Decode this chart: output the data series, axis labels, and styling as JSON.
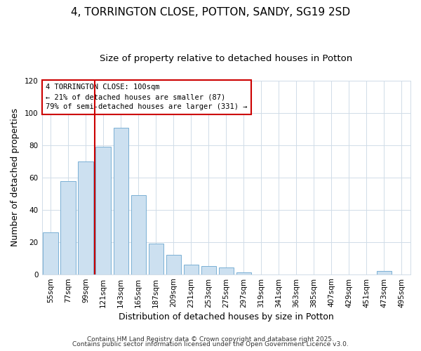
{
  "title": "4, TORRINGTON CLOSE, POTTON, SANDY, SG19 2SD",
  "subtitle": "Size of property relative to detached houses in Potton",
  "xlabel": "Distribution of detached houses by size in Potton",
  "ylabel": "Number of detached properties",
  "bin_labels": [
    "55sqm",
    "77sqm",
    "99sqm",
    "121sqm",
    "143sqm",
    "165sqm",
    "187sqm",
    "209sqm",
    "231sqm",
    "253sqm",
    "275sqm",
    "297sqm",
    "319sqm",
    "341sqm",
    "363sqm",
    "385sqm",
    "407sqm",
    "429sqm",
    "451sqm",
    "473sqm",
    "495sqm"
  ],
  "bar_values": [
    26,
    58,
    70,
    79,
    91,
    49,
    19,
    12,
    6,
    5,
    4,
    1,
    0,
    0,
    0,
    0,
    0,
    0,
    0,
    2,
    0
  ],
  "bar_color": "#cce0f0",
  "bar_edge_color": "#7ab0d4",
  "vline_color": "#cc0000",
  "ylim": [
    0,
    120
  ],
  "yticks": [
    0,
    20,
    40,
    60,
    80,
    100,
    120
  ],
  "annotation_title": "4 TORRINGTON CLOSE: 100sqm",
  "annotation_line1": "← 21% of detached houses are smaller (87)",
  "annotation_line2": "79% of semi-detached houses are larger (331) →",
  "footer1": "Contains HM Land Registry data © Crown copyright and database right 2025.",
  "footer2": "Contains public sector information licensed under the Open Government Licence v3.0.",
  "background_color": "#ffffff",
  "plot_background": "#ffffff",
  "grid_color": "#d0dce8",
  "title_fontsize": 11,
  "subtitle_fontsize": 9.5,
  "axis_label_fontsize": 9,
  "tick_fontsize": 7.5,
  "footer_fontsize": 6.5
}
